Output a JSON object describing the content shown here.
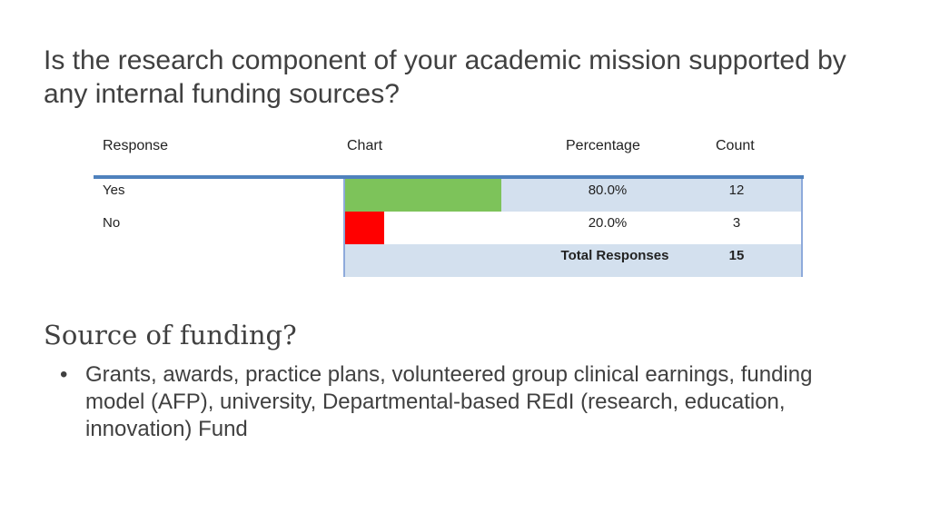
{
  "title": "Is the research component of your academic mission supported by any internal funding sources?",
  "table": {
    "headers": {
      "response": "Response",
      "chart": "Chart",
      "percentage": "Percentage",
      "count": "Count"
    },
    "rows": [
      {
        "response": "Yes",
        "percentage": "80.0%",
        "count": "12",
        "fraction": 0.8,
        "color": "#7dc35a"
      },
      {
        "response": "No",
        "percentage": "20.0%",
        "count": "3",
        "fraction": 0.2,
        "color": "#ff0000"
      }
    ],
    "total_label": "Total Responses",
    "total_count": "15"
  },
  "chart_data": {
    "type": "bar",
    "categories": [
      "Yes",
      "No"
    ],
    "values": [
      80.0,
      20.0
    ],
    "counts": [
      12,
      3
    ],
    "total": 15,
    "colors": [
      "#7dc35a",
      "#ff0000"
    ],
    "xlim": [
      0,
      100
    ]
  },
  "section": {
    "heading": "Source of funding?",
    "bullets": [
      "Grants, awards, practice plans, volunteered group clinical earnings, funding model (AFP), university, Departmental-based REdI (research, education, innovation) Fund"
    ]
  }
}
